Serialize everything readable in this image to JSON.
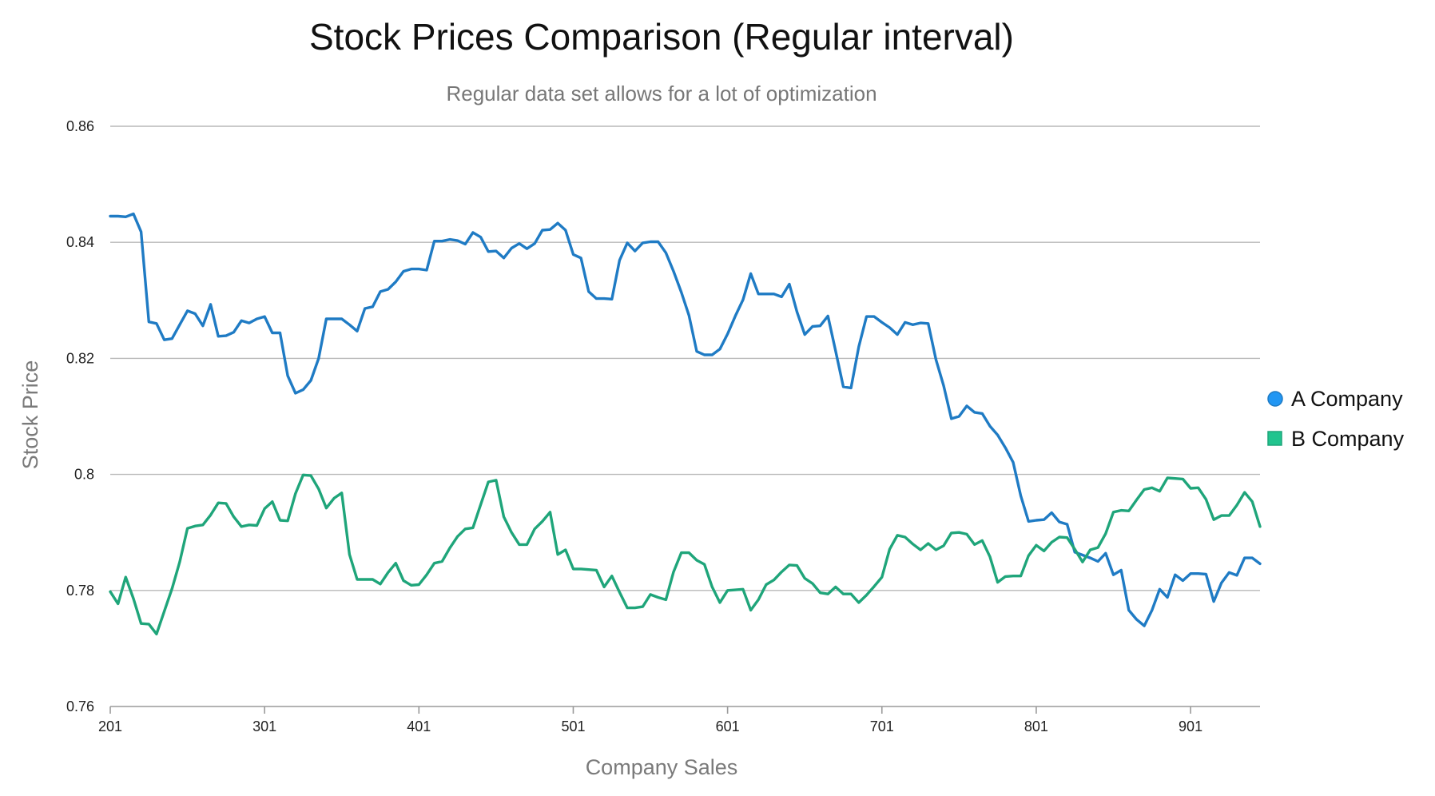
{
  "chart_data": {
    "type": "line",
    "title": "Stock Prices Comparison (Regular interval)",
    "subtitle": "Regular data set allows for a lot of optimization",
    "xlabel": "Company Sales",
    "ylabel": "Stock Price",
    "xlim": [
      201,
      946
    ],
    "ylim": [
      0.76,
      0.86
    ],
    "yticks": [
      0.76,
      0.78,
      0.8,
      0.82,
      0.84,
      0.86
    ],
    "ytick_labels": [
      "0.76",
      "0.78",
      "0.8",
      "0.82",
      "0.84",
      "0.86"
    ],
    "xticks": [
      201,
      301,
      401,
      501,
      601,
      701,
      801,
      901
    ],
    "xtick_labels": [
      "201",
      "301",
      "401",
      "501",
      "601",
      "701",
      "801",
      "901"
    ],
    "grid": true,
    "legend_position": "right",
    "x_start": 201,
    "x_step": 5,
    "series": [
      {
        "name": "A Company",
        "color": "#1f7bc4",
        "marker": "circle",
        "marker_color": "#2196f3",
        "values": [
          0.8445,
          0.8445,
          0.8444,
          0.8449,
          0.8418,
          0.8263,
          0.826,
          0.8232,
          0.8234,
          0.8258,
          0.8282,
          0.8277,
          0.8256,
          0.8293,
          0.8238,
          0.8239,
          0.8245,
          0.8265,
          0.8261,
          0.8268,
          0.8272,
          0.8244,
          0.8244,
          0.817,
          0.814,
          0.8146,
          0.8162,
          0.82,
          0.8268,
          0.8268,
          0.8268,
          0.8258,
          0.8247,
          0.8286,
          0.8289,
          0.8315,
          0.8319,
          0.8332,
          0.835,
          0.8354,
          0.8354,
          0.8352,
          0.8402,
          0.8402,
          0.8405,
          0.8403,
          0.8397,
          0.8417,
          0.8409,
          0.8384,
          0.8385,
          0.8373,
          0.839,
          0.8398,
          0.8389,
          0.8398,
          0.8421,
          0.8422,
          0.8433,
          0.8421,
          0.8379,
          0.8373,
          0.8315,
          0.8303,
          0.8303,
          0.8302,
          0.8369,
          0.8399,
          0.8385,
          0.8399,
          0.8401,
          0.8401,
          0.8382,
          0.835,
          0.8314,
          0.8274,
          0.8212,
          0.8206,
          0.8206,
          0.8216,
          0.8242,
          0.8273,
          0.8301,
          0.8346,
          0.8311,
          0.8311,
          0.8311,
          0.8306,
          0.8328,
          0.828,
          0.8241,
          0.8255,
          0.8256,
          0.8273,
          0.8213,
          0.8151,
          0.8149,
          0.822,
          0.8272,
          0.8272,
          0.8262,
          0.8253,
          0.8241,
          0.8262,
          0.8258,
          0.8261,
          0.826,
          0.8198,
          0.8153,
          0.8096,
          0.81,
          0.8118,
          0.8107,
          0.8105,
          0.8083,
          0.8068,
          0.8046,
          0.8021,
          0.7963,
          0.7919,
          0.7921,
          0.7922,
          0.7934,
          0.7918,
          0.7914,
          0.7866,
          0.7861,
          0.7856,
          0.785,
          0.7864,
          0.7827,
          0.7835,
          0.7766,
          0.775,
          0.7739,
          0.7766,
          0.7802,
          0.7788,
          0.7827,
          0.7817,
          0.7829,
          0.7829,
          0.7828,
          0.7781,
          0.7813,
          0.7831,
          0.7826,
          0.7856,
          0.7856,
          0.7846
        ]
      },
      {
        "name": "B Company",
        "color": "#1fa57a",
        "marker": "square",
        "marker_color": "#21c48e",
        "values": [
          0.7798,
          0.7777,
          0.7823,
          0.7786,
          0.7743,
          0.7742,
          0.7725,
          0.7764,
          0.7803,
          0.7849,
          0.7907,
          0.7911,
          0.7913,
          0.793,
          0.7951,
          0.795,
          0.7927,
          0.791,
          0.7913,
          0.7912,
          0.7941,
          0.7953,
          0.7921,
          0.792,
          0.7967,
          0.7999,
          0.7998,
          0.7975,
          0.7942,
          0.7959,
          0.7968,
          0.7862,
          0.7819,
          0.7819,
          0.7819,
          0.7811,
          0.7831,
          0.7847,
          0.7817,
          0.7809,
          0.781,
          0.7827,
          0.7847,
          0.785,
          0.7873,
          0.7893,
          0.7906,
          0.7908,
          0.7948,
          0.7987,
          0.799,
          0.7927,
          0.79,
          0.7879,
          0.7879,
          0.7906,
          0.7919,
          0.7935,
          0.7862,
          0.787,
          0.7837,
          0.7837,
          0.7836,
          0.7835,
          0.7806,
          0.7825,
          0.7797,
          0.777,
          0.777,
          0.7772,
          0.7793,
          0.7788,
          0.7784,
          0.7832,
          0.7865,
          0.7865,
          0.7852,
          0.7845,
          0.7806,
          0.7779,
          0.78,
          0.7801,
          0.7802,
          0.7766,
          0.7784,
          0.781,
          0.7818,
          0.7832,
          0.7844,
          0.7843,
          0.7821,
          0.7812,
          0.7796,
          0.7794,
          0.7806,
          0.7794,
          0.7794,
          0.7779,
          0.7792,
          0.7807,
          0.7823,
          0.7871,
          0.7895,
          0.7892,
          0.788,
          0.787,
          0.7881,
          0.787,
          0.7877,
          0.7899,
          0.79,
          0.7897,
          0.7879,
          0.7886,
          0.7858,
          0.7814,
          0.7824,
          0.7825,
          0.7825,
          0.786,
          0.7878,
          0.7868,
          0.7883,
          0.7892,
          0.7891,
          0.7871,
          0.7849,
          0.787,
          0.7874,
          0.7898,
          0.7935,
          0.7938,
          0.7937,
          0.7956,
          0.7974,
          0.7977,
          0.7971,
          0.7994,
          0.7993,
          0.7992,
          0.7976,
          0.7977,
          0.7957,
          0.7922,
          0.7929,
          0.7929,
          0.7947,
          0.7969,
          0.7953,
          0.791
        ]
      }
    ]
  }
}
